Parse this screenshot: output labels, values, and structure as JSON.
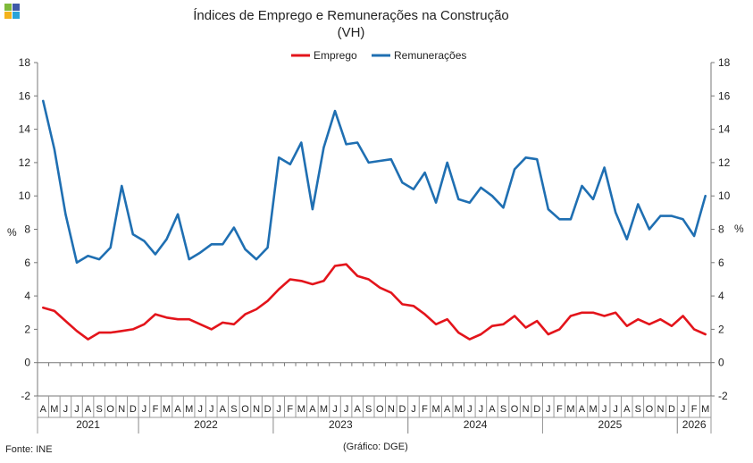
{
  "logo": {
    "name": "ine-logo"
  },
  "footer": {
    "source": "Fonte: INE",
    "credit": "(Gráfico: DGE)"
  },
  "chart_data": {
    "type": "line",
    "title": "Índices de Emprego e Remunerações na Construção",
    "subtitle": "(VH)",
    "ylabel_left": "%",
    "ylabel_right": "%",
    "ylim": [
      -2,
      18
    ],
    "yticks": [
      -2,
      0,
      2,
      4,
      6,
      8,
      10,
      12,
      14,
      16,
      18
    ],
    "grid": false,
    "legend_position": "top-center",
    "x": [
      "A",
      "M",
      "J",
      "J",
      "A",
      "S",
      "O",
      "N",
      "D",
      "J",
      "F",
      "M",
      "A",
      "M",
      "J",
      "J",
      "A",
      "S",
      "O",
      "N",
      "D",
      "J",
      "F",
      "M",
      "A",
      "M",
      "J",
      "J",
      "A",
      "S",
      "O",
      "N",
      "D",
      "J",
      "F",
      "M",
      "A",
      "M",
      "J",
      "J",
      "A",
      "S",
      "O",
      "N",
      "D",
      "J",
      "F",
      "M",
      "A",
      "M",
      "J",
      "J",
      "A",
      "S",
      "O",
      "N",
      "D",
      "J",
      "F",
      "M"
    ],
    "years": [
      {
        "label": "2021",
        "start": 0,
        "end": 8
      },
      {
        "label": "2022",
        "start": 9,
        "end": 20
      },
      {
        "label": "2023",
        "start": 21,
        "end": 32
      },
      {
        "label": "2024",
        "start": 33,
        "end": 44
      },
      {
        "label": "2025",
        "start": 45,
        "end": 56
      },
      {
        "label": "2026",
        "start": 57,
        "end": 59
      }
    ],
    "series": [
      {
        "name": "Emprego",
        "color": "#e3141b",
        "values": [
          3.3,
          3.1,
          2.5,
          1.9,
          1.4,
          1.8,
          1.8,
          1.9,
          2.0,
          2.3,
          2.9,
          2.7,
          2.6,
          2.6,
          2.3,
          2.0,
          2.4,
          2.3,
          2.9,
          3.2,
          3.7,
          4.4,
          5.0,
          4.9,
          4.7,
          4.9,
          5.8,
          5.9,
          5.2,
          5.0,
          4.5,
          4.2,
          3.5,
          3.4,
          2.9,
          2.3,
          2.6,
          1.8,
          1.4,
          1.7,
          2.2,
          2.3,
          2.8,
          2.1,
          2.5,
          1.7,
          2.0,
          2.8,
          3.0,
          3.0,
          2.8,
          3.0,
          2.2,
          2.6,
          2.3,
          2.6,
          2.2,
          2.8,
          2.0,
          1.7
        ]
      },
      {
        "name": "Remunerações",
        "color": "#1f6fb2",
        "values": [
          15.7,
          12.8,
          8.9,
          6.0,
          6.4,
          6.2,
          6.9,
          10.6,
          7.7,
          7.3,
          6.5,
          7.4,
          8.9,
          6.2,
          6.6,
          7.1,
          7.1,
          8.1,
          6.8,
          6.2,
          6.9,
          12.3,
          11.9,
          13.2,
          9.2,
          12.9,
          15.1,
          13.1,
          13.2,
          12.0,
          12.1,
          12.2,
          10.8,
          10.4,
          11.4,
          9.6,
          12.0,
          9.8,
          9.6,
          10.5,
          10.0,
          9.3,
          11.6,
          12.3,
          12.2,
          9.2,
          8.6,
          8.6,
          10.6,
          9.8,
          11.7,
          9.0,
          7.4,
          9.5,
          8.0,
          8.8,
          8.8,
          8.6,
          7.6,
          10.0
        ]
      }
    ]
  }
}
